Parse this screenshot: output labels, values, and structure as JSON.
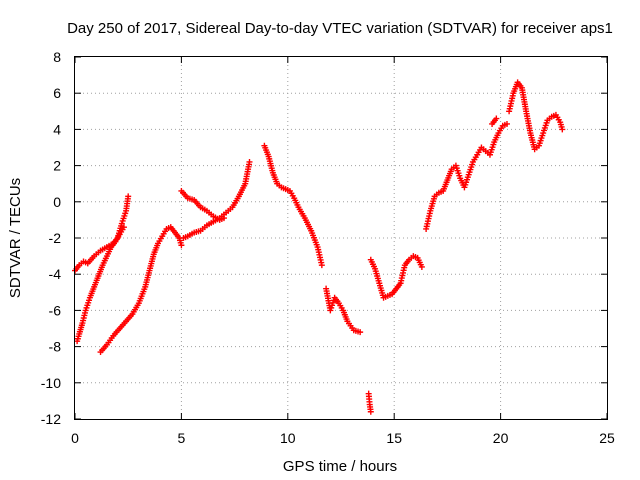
{
  "chart_data": {
    "type": "scatter",
    "title": "Day 250 of 2017, Sidereal Day-to-day VTEC variation (SDTVAR) for receiver aps1",
    "xlabel": "GPS time / hours",
    "ylabel": "SDTVAR / TECUs",
    "xlim": [
      0,
      25
    ],
    "ylim": [
      -12,
      8
    ],
    "x_ticks": [
      "0",
      "5",
      "10",
      "15",
      "20",
      "25"
    ],
    "y_ticks": [
      "-12",
      "-10",
      "-8",
      "-6",
      "-4",
      "-2",
      "0",
      "2",
      "4",
      "6",
      "8"
    ],
    "grid": true,
    "marker": "+",
    "color": "#ff0000",
    "series": [
      {
        "x": [
          0.0,
          0.2,
          0.4,
          0.6,
          0.9,
          1.2,
          1.5,
          1.8,
          2.0,
          2.2,
          2.4,
          2.5
        ],
        "y": [
          -3.8,
          -3.5,
          -3.3,
          -3.4,
          -3.0,
          -2.7,
          -2.5,
          -2.3,
          -2.0,
          -1.2,
          -0.5,
          0.3
        ]
      },
      {
        "x": [
          0.1,
          0.2,
          0.35,
          0.5,
          0.7,
          0.9,
          1.1,
          1.3,
          1.5,
          1.7,
          1.9,
          2.1,
          2.3
        ],
        "y": [
          -7.7,
          -7.3,
          -6.7,
          -6.0,
          -5.3,
          -4.7,
          -4.1,
          -3.5,
          -3.0,
          -2.5,
          -2.2,
          -1.8,
          -1.4
        ]
      },
      {
        "x": [
          1.2,
          1.5,
          1.8,
          2.1,
          2.4,
          2.7,
          3.0,
          3.3,
          3.5,
          3.7,
          3.9,
          4.1,
          4.3,
          4.5,
          4.7,
          4.9,
          5.0
        ],
        "y": [
          -8.3,
          -7.9,
          -7.4,
          -7.0,
          -6.6,
          -6.2,
          -5.6,
          -4.7,
          -3.8,
          -2.9,
          -2.3,
          -1.9,
          -1.5,
          -1.4,
          -1.7,
          -2.0,
          -2.4
        ]
      },
      {
        "x": [
          5.1,
          5.3,
          5.6,
          5.9,
          6.2,
          6.5,
          6.8,
          7.1,
          7.4,
          7.7,
          8.0,
          8.2
        ],
        "y": [
          -2.0,
          -1.9,
          -1.7,
          -1.6,
          -1.3,
          -1.1,
          -0.9,
          -0.6,
          -0.3,
          0.3,
          1.0,
          2.2
        ]
      },
      {
        "x": [
          5.0,
          5.3,
          5.6,
          5.9,
          6.2,
          6.5,
          6.8,
          7.0
        ],
        "y": [
          0.6,
          0.2,
          0.1,
          -0.3,
          -0.5,
          -0.8,
          -1.0,
          -0.9
        ]
      },
      {
        "x": [
          8.9,
          9.1,
          9.3,
          9.5,
          9.7,
          9.9,
          10.1,
          10.3,
          10.5,
          10.8,
          11.1,
          11.4,
          11.6
        ],
        "y": [
          3.1,
          2.5,
          1.6,
          1.0,
          0.8,
          0.7,
          0.6,
          0.2,
          -0.3,
          -0.9,
          -1.6,
          -2.5,
          -3.5
        ]
      },
      {
        "x": [
          11.8,
          12.0,
          12.2,
          12.4,
          12.6,
          12.8,
          13.1,
          13.4
        ],
        "y": [
          -4.8,
          -6.0,
          -5.3,
          -5.6,
          -6.0,
          -6.6,
          -7.1,
          -7.2
        ]
      },
      {
        "x": [
          13.8,
          13.85,
          13.9
        ],
        "y": [
          -10.6,
          -11.2,
          -11.6
        ]
      },
      {
        "x": [
          13.9,
          14.1,
          14.3,
          14.5,
          14.7,
          14.9,
          15.1,
          15.3,
          15.5,
          15.7,
          15.9,
          16.1,
          16.3
        ],
        "y": [
          -3.2,
          -3.7,
          -4.5,
          -5.3,
          -5.2,
          -5.1,
          -4.8,
          -4.5,
          -3.5,
          -3.2,
          -3.0,
          -3.1,
          -3.6
        ]
      },
      {
        "x": [
          16.5,
          16.7,
          16.9,
          17.1,
          17.3,
          17.5,
          17.7,
          17.9,
          18.1,
          18.3,
          18.5,
          18.7,
          18.9,
          19.1,
          19.3,
          19.5,
          19.7,
          19.9,
          20.1,
          20.3
        ],
        "y": [
          -1.5,
          -0.5,
          0.3,
          0.5,
          0.6,
          1.2,
          1.8,
          2.0,
          1.3,
          0.8,
          1.5,
          2.2,
          2.6,
          3.0,
          2.8,
          2.6,
          3.3,
          3.8,
          4.2,
          4.3
        ]
      },
      {
        "x": [
          19.6,
          19.8
        ],
        "y": [
          4.3,
          4.6
        ]
      },
      {
        "x": [
          20.4,
          20.6,
          20.8,
          21.0,
          21.2,
          21.4,
          21.6,
          21.8,
          22.0,
          22.2,
          22.4,
          22.6,
          22.8,
          22.9
        ],
        "y": [
          5.0,
          6.0,
          6.6,
          6.3,
          5.0,
          3.8,
          2.9,
          3.1,
          3.8,
          4.5,
          4.7,
          4.8,
          4.4,
          4.0
        ]
      }
    ]
  }
}
